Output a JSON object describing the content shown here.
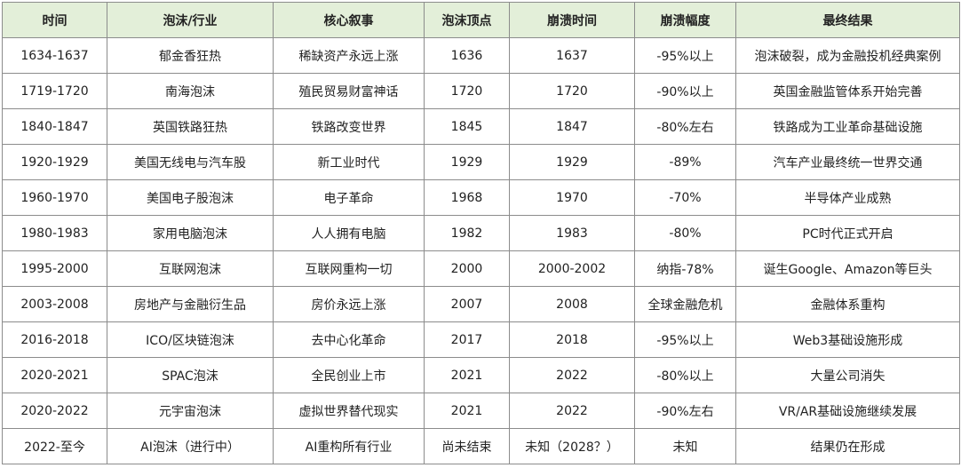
{
  "table": {
    "headers": [
      "时间",
      "泡沫/行业",
      "核心叙事",
      "泡沫顶点",
      "崩溃时间",
      "崩溃幅度",
      "最终结果"
    ],
    "rows": [
      [
        "1634-1637",
        "郁金香狂热",
        "稀缺资产永远上涨",
        "1636",
        "1637",
        "-95%以上",
        "泡沫破裂，成为金融投机经典案例"
      ],
      [
        "1719-1720",
        "南海泡沫",
        "殖民贸易财富神话",
        "1720",
        "1720",
        "-90%以上",
        "英国金融监管体系开始完善"
      ],
      [
        "1840-1847",
        "英国铁路狂热",
        "铁路改变世界",
        "1845",
        "1847",
        "-80%左右",
        "铁路成为工业革命基础设施"
      ],
      [
        "1920-1929",
        "美国无线电与汽车股",
        "新工业时代",
        "1929",
        "1929",
        "-89%",
        "汽车产业最终统一世界交通"
      ],
      [
        "1960-1970",
        "美国电子股泡沫",
        "电子革命",
        "1968",
        "1970",
        "-70%",
        "半导体产业成熟"
      ],
      [
        "1980-1983",
        "家用电脑泡沫",
        "人人拥有电脑",
        "1982",
        "1983",
        "-80%",
        "PC时代正式开启"
      ],
      [
        "1995-2000",
        "互联网泡沫",
        "互联网重构一切",
        "2000",
        "2000-2002",
        "纳指-78%",
        "诞生Google、Amazon等巨头"
      ],
      [
        "2003-2008",
        "房地产与金融衍生品",
        "房价永远上涨",
        "2007",
        "2008",
        "全球金融危机",
        "金融体系重构"
      ],
      [
        "2016-2018",
        "ICO/区块链泡沫",
        "去中心化革命",
        "2017",
        "2018",
        "-95%以上",
        "Web3基础设施形成"
      ],
      [
        "2020-2021",
        "SPAC泡沫",
        "全民创业上市",
        "2021",
        "2022",
        "-80%以上",
        "大量公司消失"
      ],
      [
        "2020-2022",
        "元宇宙泡沫",
        "虚拟世界替代现实",
        "2021",
        "2022",
        "-90%左右",
        "VR/AR基础设施继续发展"
      ],
      [
        "2022-至今",
        "AI泡沫（进行中）",
        "AI重构所有行业",
        "尚未结束",
        "未知（2028？）",
        "未知",
        "结果仍在形成"
      ]
    ]
  }
}
